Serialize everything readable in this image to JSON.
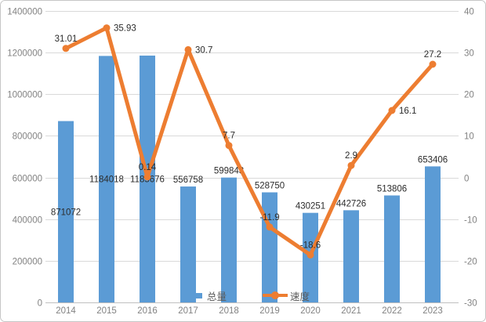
{
  "chart_data": {
    "type": "combo",
    "title": "",
    "categories": [
      "2014",
      "2015",
      "2016",
      "2017",
      "2018",
      "2019",
      "2020",
      "2021",
      "2022",
      "2023"
    ],
    "series": [
      {
        "name": "总量",
        "type": "bar",
        "axis": "left",
        "color": "#5B9BD5",
        "values": [
          871072,
          1184018,
          1185676,
          556758,
          599843,
          528750,
          430251,
          442726,
          513806,
          653406
        ],
        "labels": [
          "871072",
          "1184018",
          "1185676",
          "556758",
          "599843",
          "528750",
          "430251",
          "442726",
          "513806",
          "653406"
        ],
        "label_placement": [
          "inside-center",
          "inside-center",
          "inside-center",
          "outside-end",
          "outside-end",
          "outside-end",
          "outside-end",
          "outside-end",
          "outside-end",
          "outside-end"
        ]
      },
      {
        "name": "速度",
        "type": "line",
        "axis": "right",
        "color": "#ED7D31",
        "values": [
          31.01,
          35.93,
          0.14,
          30.7,
          7.7,
          -11.9,
          -18.6,
          2.9,
          16.1,
          27.2
        ],
        "labels": [
          "31.01",
          "35.93",
          "0.14",
          "30.7",
          "7.7",
          "-11.9",
          "-18.6",
          "2.9",
          "16.1",
          "27.2"
        ],
        "label_placement": [
          "above",
          "right",
          "above",
          "right",
          "above",
          "above",
          "above",
          "above",
          "right",
          "above"
        ]
      }
    ],
    "left_axis": {
      "min": 0,
      "max": 1400000,
      "step": 200000,
      "tick_labels": [
        "0",
        "200000",
        "400000",
        "600000",
        "800000",
        "1000000",
        "1200000",
        "1400000"
      ]
    },
    "right_axis": {
      "min": -30,
      "max": 40,
      "step": 10,
      "tick_labels": [
        "-30",
        "-20",
        "-10",
        "0",
        "10",
        "20",
        "30",
        "40"
      ]
    },
    "legend": {
      "position": "bottom-inside",
      "items": [
        {
          "label": "总量",
          "marker": "bar-swatch"
        },
        {
          "label": "速度",
          "marker": "line-marker"
        }
      ]
    },
    "grid": true,
    "styles": {
      "bar_color": "#5B9BD5",
      "line_color": "#ED7D31",
      "gridline_color": "#D9D9D9",
      "axis_line_color": "#BFBFBF",
      "axis_label_color": "#828282",
      "data_label_color": "#2B2B2B",
      "legend_label_color": "#595959",
      "border_color": "#C6C6C6",
      "background": "#FFFFFF"
    }
  }
}
